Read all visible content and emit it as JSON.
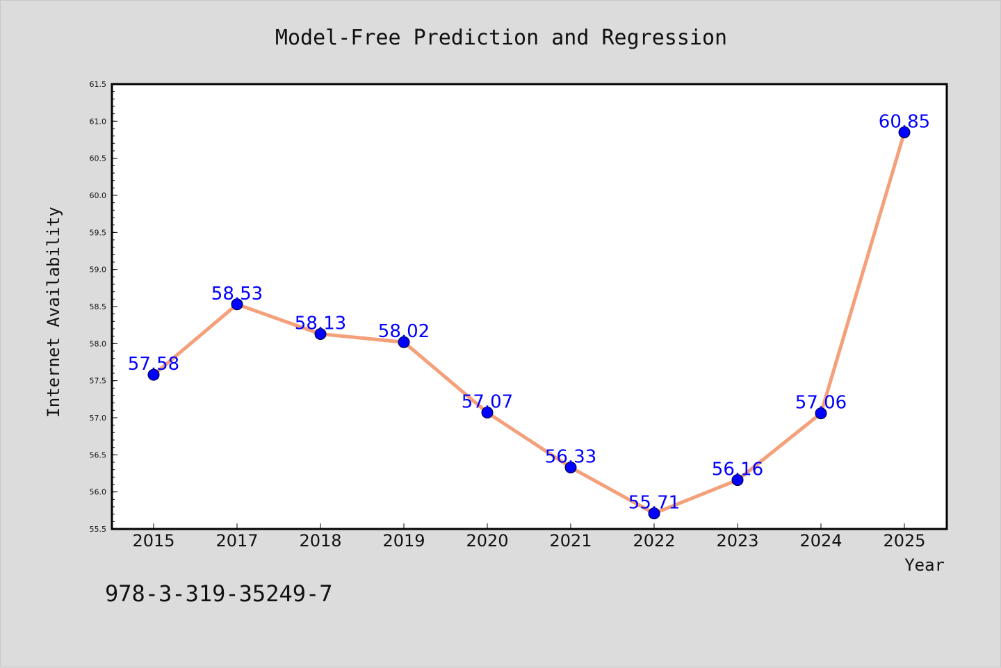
{
  "chart_data": {
    "type": "line",
    "title": "Model-Free Prediction and Regression",
    "xlabel": "Year",
    "ylabel": "Internet Availability",
    "categories": [
      "2015",
      "2017",
      "2018",
      "2019",
      "2020",
      "2021",
      "2022",
      "2023",
      "2024",
      "2025"
    ],
    "series": [
      {
        "values": [
          57.58,
          58.53,
          58.13,
          58.02,
          57.07,
          56.33,
          55.71,
          56.16,
          57.06,
          60.85
        ],
        "labels": [
          "57.58",
          "58.53",
          "58.13",
          "58.02",
          "57.07",
          "56.33",
          "55.71",
          "56.16",
          "57.06",
          "60.85"
        ]
      }
    ],
    "ylim": [
      55.5,
      61.5
    ],
    "yticks": [
      55.5,
      56.0,
      56.5,
      57.0,
      57.5,
      58.0,
      58.5,
      59.0,
      59.5,
      60.0,
      60.5,
      61.0,
      61.5
    ],
    "ytick_labels": [
      "55.5",
      "56.0",
      "56.5",
      "57.0",
      "57.5",
      "58.0",
      "58.5",
      "59.0",
      "59.5",
      "60.0",
      "60.5",
      "61.0",
      "61.5"
    ],
    "grid": false,
    "line_color": "#f4a07a",
    "marker_color": "#0000ff",
    "label_color": "#0000ff",
    "background": "#dcdcdc",
    "plot_background": "#ffffff"
  },
  "footer": {
    "isbn": "978-3-319-35249-7"
  }
}
